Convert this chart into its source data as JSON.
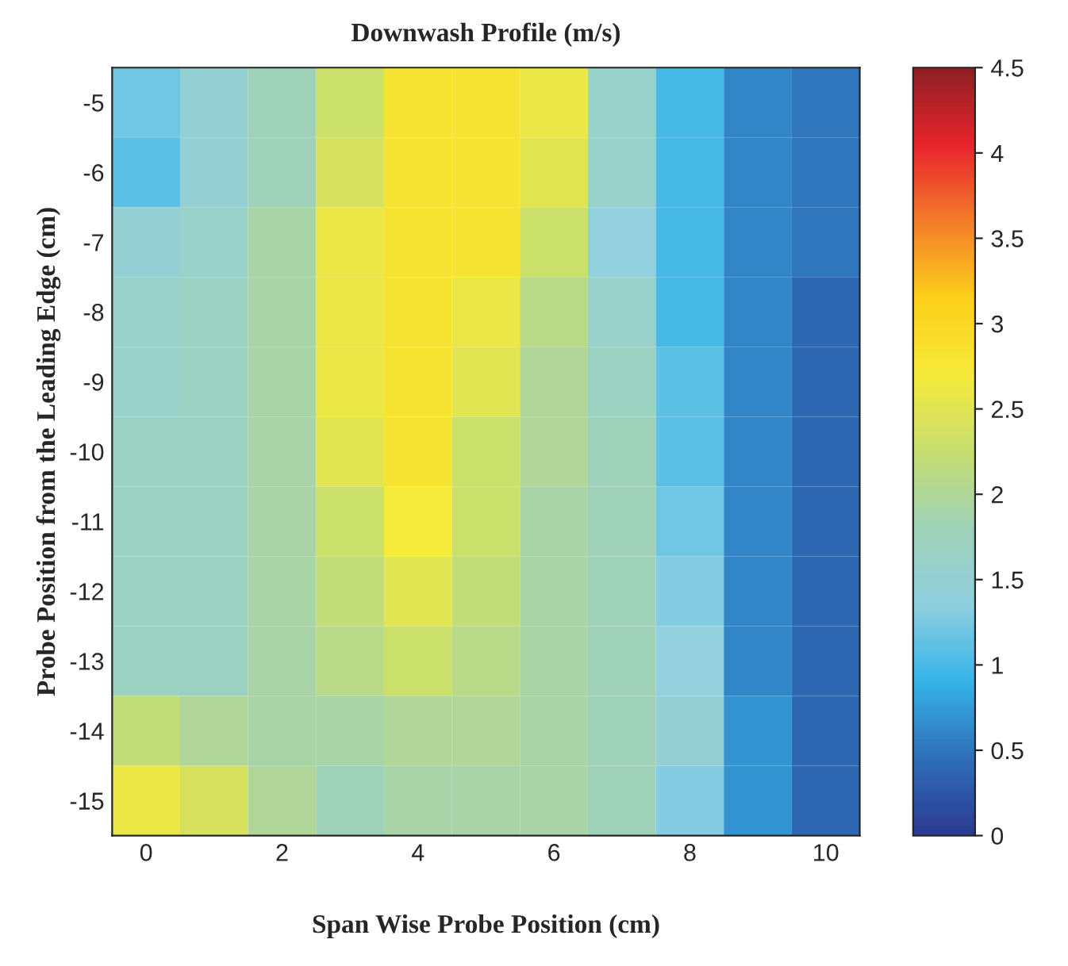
{
  "chart_data": {
    "type": "heatmap",
    "title": "Downwash Profile (m/s)",
    "xlabel": "Span Wise Probe Position (cm)",
    "ylabel": "Probe Position from the Leading Edge (cm)",
    "categories": [
      "0",
      null,
      "2",
      null,
      "4",
      null,
      "6",
      null,
      "8",
      null,
      "10"
    ],
    "y_categories": [
      "-5",
      "-6",
      "-7",
      "-8",
      "-9",
      "-10",
      "-11",
      "-12",
      "-13",
      "-14",
      "-15"
    ],
    "cells": [
      [
        1.2,
        1.5,
        1.8,
        2.3,
        2.8,
        2.8,
        2.6,
        1.6,
        1.0,
        0.6,
        0.5
      ],
      [
        1.1,
        1.5,
        1.8,
        2.4,
        2.8,
        2.8,
        2.5,
        1.6,
        1.0,
        0.6,
        0.5
      ],
      [
        1.5,
        1.6,
        1.9,
        2.6,
        2.8,
        2.8,
        2.3,
        1.4,
        1.0,
        0.6,
        0.5
      ],
      [
        1.6,
        1.7,
        1.9,
        2.6,
        2.8,
        2.6,
        2.1,
        1.6,
        1.0,
        0.6,
        0.4
      ],
      [
        1.6,
        1.7,
        1.9,
        2.6,
        2.8,
        2.5,
        2.0,
        1.7,
        1.1,
        0.6,
        0.4
      ],
      [
        1.7,
        1.7,
        1.9,
        2.5,
        2.8,
        2.3,
        2.0,
        1.8,
        1.1,
        0.6,
        0.4
      ],
      [
        1.7,
        1.7,
        1.9,
        2.3,
        2.7,
        2.3,
        1.9,
        1.8,
        1.2,
        0.6,
        0.4
      ],
      [
        1.7,
        1.7,
        1.9,
        2.2,
        2.5,
        2.2,
        1.9,
        1.8,
        1.3,
        0.6,
        0.4
      ],
      [
        1.7,
        1.7,
        1.9,
        2.1,
        2.3,
        2.1,
        1.9,
        1.8,
        1.4,
        0.6,
        0.4
      ],
      [
        2.2,
        2.0,
        1.9,
        1.9,
        2.0,
        2.0,
        1.9,
        1.8,
        1.5,
        0.7,
        0.4
      ],
      [
        2.6,
        2.4,
        2.0,
        1.8,
        1.9,
        1.9,
        1.9,
        1.8,
        1.3,
        0.7,
        0.4
      ]
    ],
    "colors": [
      "#2b3a92",
      "#2f6fb8",
      "#35b4e8",
      "#8fd0e0",
      "#9fd1b8",
      "#c6de70",
      "#f6ea3a",
      "#fbd11a",
      "#f47d2a",
      "#e8242c",
      "#8e1f23"
    ],
    "clim": [
      0,
      4.5
    ],
    "cticks": [
      0,
      0.5,
      1,
      1.5,
      2,
      2.5,
      3,
      3.5,
      4,
      4.5
    ]
  }
}
